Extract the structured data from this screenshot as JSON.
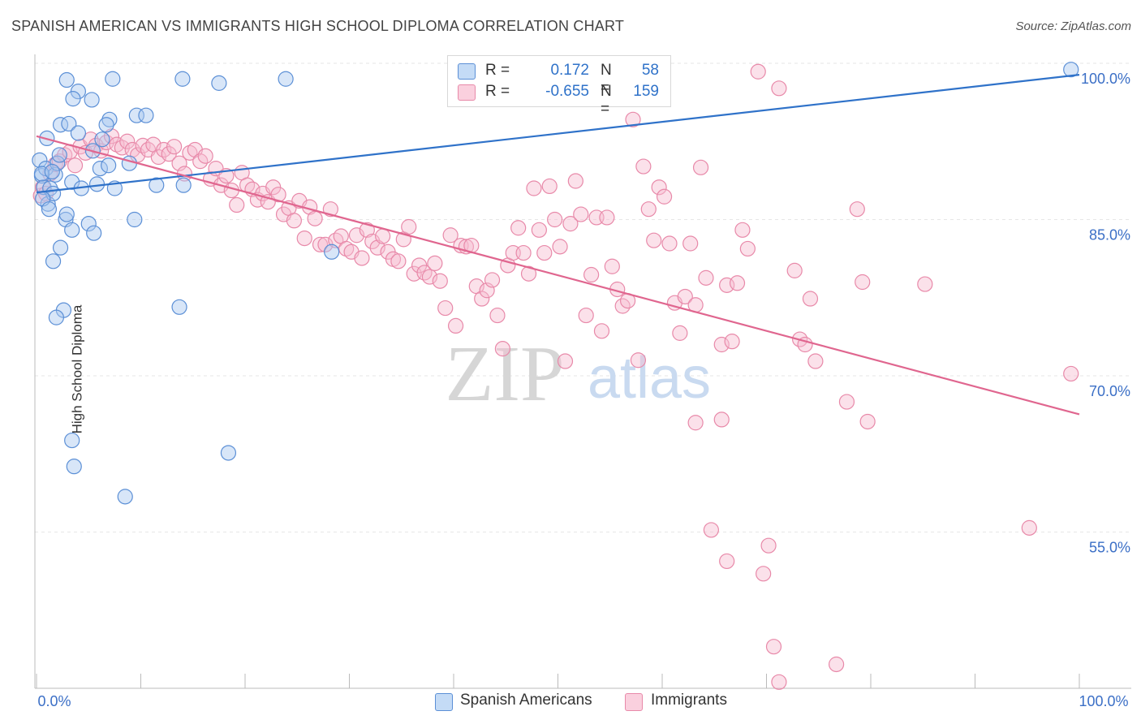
{
  "header": {
    "title": "SPANISH AMERICAN VS IMMIGRANTS HIGH SCHOOL DIPLOMA CORRELATION CHART",
    "source": "Source: ZipAtlas.com"
  },
  "legend": {
    "r_label": "R =",
    "n_label": "N =",
    "series": [
      {
        "name": "Spanish Americans",
        "r": "0.172",
        "n": "58"
      },
      {
        "name": "Immigrants",
        "r": "-0.655",
        "n": "159"
      }
    ]
  },
  "watermark": {
    "zip": "ZIP",
    "atlas": "atlas"
  },
  "colors": {
    "blue_fill": "#a8c8f0",
    "blue_stroke": "#5b8fd6",
    "blue_line": "#2f72c9",
    "pink_fill": "#f7bcd0",
    "pink_stroke": "#e889a9",
    "pink_line": "#e0668f",
    "tick_label": "#3b6fc6",
    "grid": "#e6e6e6"
  },
  "chart_data": {
    "type": "scatter",
    "title": "SPANISH AMERICAN VS IMMIGRANTS HIGH SCHOOL DIPLOMA CORRELATION CHART",
    "xlabel": "",
    "ylabel": "High School Diploma",
    "xlim": [
      0,
      100
    ],
    "ylim": [
      40,
      100
    ],
    "x_ticks_labeled": [
      "0.0%",
      "100.0%"
    ],
    "y_ticks": [
      100,
      85,
      70,
      55
    ],
    "y_tick_labels": [
      "100.0%",
      "85.0%",
      "70.0%",
      "55.0%"
    ],
    "grid": true,
    "series": [
      {
        "name": "Spanish Americans",
        "r": 0.172,
        "n": 58,
        "trend": {
          "x": [
            0,
            100
          ],
          "y": [
            87.6,
            98.9
          ]
        },
        "points": [
          [
            0.3,
            90.7
          ],
          [
            0.5,
            89.2
          ],
          [
            0.7,
            88.1
          ],
          [
            0.9,
            89.9
          ],
          [
            1.1,
            86.5
          ],
          [
            1.3,
            88.0
          ],
          [
            1.6,
            87.5
          ],
          [
            1.8,
            89.3
          ],
          [
            2.0,
            90.4
          ],
          [
            2.2,
            91.2
          ],
          [
            0.6,
            87.0
          ],
          [
            1.0,
            92.8
          ],
          [
            2.3,
            94.1
          ],
          [
            3.1,
            94.2
          ],
          [
            4.0,
            93.3
          ],
          [
            5.4,
            91.6
          ],
          [
            6.3,
            92.7
          ],
          [
            7.0,
            94.6
          ],
          [
            2.9,
            98.4
          ],
          [
            4.0,
            97.3
          ],
          [
            3.5,
            96.6
          ],
          [
            5.3,
            96.5
          ],
          [
            7.3,
            98.5
          ],
          [
            9.6,
            95.0
          ],
          [
            10.5,
            95.0
          ],
          [
            14.0,
            98.5
          ],
          [
            17.5,
            98.1
          ],
          [
            23.9,
            98.5
          ],
          [
            0.5,
            89.4
          ],
          [
            1.2,
            86.0
          ],
          [
            2.8,
            85.0
          ],
          [
            3.4,
            88.6
          ],
          [
            4.3,
            88.0
          ],
          [
            5.8,
            88.4
          ],
          [
            7.5,
            88.0
          ],
          [
            8.9,
            90.4
          ],
          [
            11.5,
            88.3
          ],
          [
            14.1,
            88.3
          ],
          [
            6.1,
            89.9
          ],
          [
            6.9,
            90.2
          ],
          [
            3.4,
            84.0
          ],
          [
            5.0,
            84.6
          ],
          [
            5.5,
            83.7
          ],
          [
            9.4,
            85.0
          ],
          [
            1.6,
            81.0
          ],
          [
            2.3,
            82.3
          ],
          [
            2.9,
            85.5
          ],
          [
            2.6,
            76.3
          ],
          [
            1.9,
            75.6
          ],
          [
            13.7,
            76.6
          ],
          [
            28.3,
            81.9
          ],
          [
            3.4,
            63.8
          ],
          [
            3.6,
            61.3
          ],
          [
            18.4,
            62.6
          ],
          [
            8.5,
            58.4
          ],
          [
            99.2,
            99.4
          ],
          [
            6.7,
            94.1
          ],
          [
            1.5,
            89.6
          ]
        ]
      },
      {
        "name": "Immigrants",
        "r": -0.655,
        "n": 159,
        "trend": {
          "x": [
            0,
            100
          ],
          "y": [
            93.0,
            66.3
          ]
        },
        "points": [
          [
            0.4,
            87.3
          ],
          [
            0.6,
            88.1
          ],
          [
            0.9,
            87.5
          ],
          [
            1.3,
            89.4
          ],
          [
            1.8,
            90.3
          ],
          [
            2.2,
            90.6
          ],
          [
            2.7,
            91.2
          ],
          [
            3.2,
            91.5
          ],
          [
            3.7,
            90.2
          ],
          [
            4.2,
            92.0
          ],
          [
            4.7,
            91.4
          ],
          [
            5.2,
            92.7
          ],
          [
            5.7,
            92.1
          ],
          [
            6.2,
            91.6
          ],
          [
            6.7,
            92.4
          ],
          [
            7.2,
            93.0
          ],
          [
            7.7,
            92.2
          ],
          [
            8.2,
            91.9
          ],
          [
            8.7,
            92.5
          ],
          [
            9.2,
            91.7
          ],
          [
            9.7,
            91.2
          ],
          [
            10.2,
            92.1
          ],
          [
            10.7,
            91.7
          ],
          [
            11.2,
            92.2
          ],
          [
            11.7,
            91.0
          ],
          [
            12.2,
            91.7
          ],
          [
            12.7,
            91.3
          ],
          [
            13.2,
            92.0
          ],
          [
            13.7,
            90.4
          ],
          [
            14.2,
            89.4
          ],
          [
            14.7,
            91.4
          ],
          [
            15.2,
            91.7
          ],
          [
            15.7,
            90.6
          ],
          [
            16.2,
            91.1
          ],
          [
            16.7,
            88.9
          ],
          [
            17.2,
            89.9
          ],
          [
            17.7,
            88.3
          ],
          [
            18.2,
            89.2
          ],
          [
            18.7,
            87.8
          ],
          [
            19.2,
            86.4
          ],
          [
            19.7,
            89.5
          ],
          [
            20.2,
            88.3
          ],
          [
            20.7,
            87.9
          ],
          [
            21.2,
            86.9
          ],
          [
            21.7,
            87.5
          ],
          [
            22.2,
            86.7
          ],
          [
            22.7,
            88.1
          ],
          [
            23.2,
            87.4
          ],
          [
            23.7,
            85.5
          ],
          [
            24.2,
            86.1
          ],
          [
            24.7,
            84.9
          ],
          [
            25.2,
            86.8
          ],
          [
            25.7,
            83.2
          ],
          [
            26.2,
            86.2
          ],
          [
            26.7,
            85.1
          ],
          [
            27.2,
            82.6
          ],
          [
            27.7,
            82.6
          ],
          [
            28.2,
            86.0
          ],
          [
            28.7,
            83.0
          ],
          [
            29.2,
            83.4
          ],
          [
            29.7,
            82.2
          ],
          [
            30.2,
            81.9
          ],
          [
            30.7,
            83.5
          ],
          [
            31.2,
            81.3
          ],
          [
            31.7,
            84.0
          ],
          [
            32.2,
            82.9
          ],
          [
            32.7,
            82.3
          ],
          [
            33.2,
            83.4
          ],
          [
            33.7,
            81.9
          ],
          [
            34.2,
            81.2
          ],
          [
            34.7,
            81.0
          ],
          [
            35.2,
            83.1
          ],
          [
            35.7,
            84.3
          ],
          [
            36.2,
            79.8
          ],
          [
            36.7,
            80.6
          ],
          [
            37.2,
            79.9
          ],
          [
            37.7,
            79.5
          ],
          [
            38.2,
            80.8
          ],
          [
            38.7,
            79.1
          ],
          [
            39.2,
            76.5
          ],
          [
            39.7,
            83.5
          ],
          [
            40.2,
            74.8
          ],
          [
            40.7,
            82.5
          ],
          [
            41.2,
            82.4
          ],
          [
            41.7,
            82.5
          ],
          [
            42.2,
            78.6
          ],
          [
            42.7,
            77.4
          ],
          [
            43.2,
            78.2
          ],
          [
            43.7,
            79.2
          ],
          [
            44.2,
            75.8
          ],
          [
            44.7,
            72.6
          ],
          [
            45.2,
            80.6
          ],
          [
            45.7,
            81.8
          ],
          [
            46.2,
            84.2
          ],
          [
            46.7,
            81.8
          ],
          [
            47.2,
            79.8
          ],
          [
            47.7,
            88.0
          ],
          [
            48.2,
            84.0
          ],
          [
            48.7,
            81.8
          ],
          [
            49.2,
            88.2
          ],
          [
            49.7,
            85.0
          ],
          [
            50.2,
            82.4
          ],
          [
            50.7,
            71.4
          ],
          [
            51.2,
            84.6
          ],
          [
            51.7,
            88.7
          ],
          [
            52.2,
            85.5
          ],
          [
            52.7,
            75.8
          ],
          [
            53.2,
            79.7
          ],
          [
            53.7,
            85.2
          ],
          [
            54.2,
            74.3
          ],
          [
            54.7,
            85.2
          ],
          [
            55.2,
            80.5
          ],
          [
            55.7,
            78.3
          ],
          [
            56.2,
            76.7
          ],
          [
            56.7,
            77.2
          ],
          [
            57.2,
            94.6
          ],
          [
            57.7,
            71.5
          ],
          [
            58.2,
            90.1
          ],
          [
            58.7,
            86.0
          ],
          [
            59.2,
            83.0
          ],
          [
            59.7,
            88.1
          ],
          [
            60.2,
            87.2
          ],
          [
            60.7,
            82.7
          ],
          [
            61.2,
            77.0
          ],
          [
            61.7,
            74.1
          ],
          [
            62.2,
            77.6
          ],
          [
            62.7,
            82.7
          ],
          [
            63.2,
            76.8
          ],
          [
            63.7,
            90.0
          ],
          [
            64.2,
            79.4
          ],
          [
            65.7,
            73.0
          ],
          [
            66.2,
            78.7
          ],
          [
            66.7,
            73.3
          ],
          [
            67.2,
            78.9
          ],
          [
            67.7,
            84.0
          ],
          [
            68.2,
            82.2
          ],
          [
            69.2,
            99.2
          ],
          [
            71.2,
            97.6
          ],
          [
            72.7,
            80.1
          ],
          [
            73.2,
            73.5
          ],
          [
            73.7,
            73.0
          ],
          [
            74.2,
            77.4
          ],
          [
            74.7,
            71.4
          ],
          [
            77.7,
            67.5
          ],
          [
            78.7,
            86.0
          ],
          [
            79.2,
            79.0
          ],
          [
            79.7,
            65.6
          ],
          [
            85.2,
            78.8
          ],
          [
            99.2,
            70.2
          ],
          [
            95.2,
            55.4
          ],
          [
            63.2,
            65.5
          ],
          [
            65.7,
            65.8
          ],
          [
            64.7,
            55.2
          ],
          [
            66.2,
            52.2
          ],
          [
            70.2,
            53.7
          ],
          [
            69.7,
            51.0
          ],
          [
            70.7,
            44.0
          ],
          [
            71.2,
            40.6
          ],
          [
            76.7,
            42.3
          ]
        ]
      }
    ]
  }
}
